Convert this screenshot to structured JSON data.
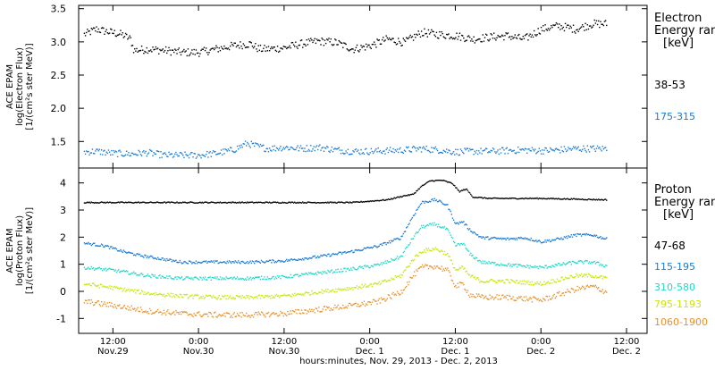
{
  "chart_data": {
    "x_axis": {
      "ticks": [
        {
          "day": 0.5,
          "line1": "12:00",
          "line2": "Nov.29"
        },
        {
          "day": 1.0,
          "line1": "0:00",
          "line2": "Nov.30"
        },
        {
          "day": 1.5,
          "line1": "12:00",
          "line2": "Nov.30"
        },
        {
          "day": 2.0,
          "line1": "0:00",
          "line2": "Dec. 1"
        },
        {
          "day": 2.5,
          "line1": "12:00",
          "line2": "Dec. 1"
        },
        {
          "day": 3.0,
          "line1": "0:00",
          "line2": "Dec. 2"
        },
        {
          "day": 3.5,
          "line1": "12:00",
          "line2": "Dec. 2"
        }
      ],
      "range": [
        0.3,
        3.62
      ],
      "label": "hours:minutes, Nov. 29, 2013 - Dec. 2, 2013"
    },
    "panels": [
      {
        "type": "scatter",
        "ylabel_lines": [
          "ACE EPAM",
          "log(Electron Flux)",
          "[1/(cm²s ster MeV)]"
        ],
        "ylim": [
          1.1,
          3.55
        ],
        "yticks": [
          {
            "v": 1.5,
            "label": "1.5"
          },
          {
            "v": 2.0,
            "label": "2.0"
          },
          {
            "v": 2.5,
            "label": "2.5"
          },
          {
            "v": 3.0,
            "label": "3.0"
          },
          {
            "v": 3.5,
            "label": "3.5"
          }
        ],
        "legend_title": [
          "Electron",
          "Energy ran",
          "[keV]"
        ],
        "series": [
          {
            "name": "38-53",
            "color": "#000000",
            "scatter": 0.06,
            "points": [
              [
                0.33,
                3.12
              ],
              [
                0.4,
                3.2
              ],
              [
                0.45,
                3.17
              ],
              [
                0.55,
                3.12
              ],
              [
                0.6,
                3.05
              ],
              [
                0.62,
                2.88
              ],
              [
                0.7,
                2.9
              ],
              [
                0.8,
                2.88
              ],
              [
                0.9,
                2.85
              ],
              [
                1.0,
                2.85
              ],
              [
                1.1,
                2.9
              ],
              [
                1.2,
                2.95
              ],
              [
                1.3,
                2.98
              ],
              [
                1.35,
                2.9
              ],
              [
                1.4,
                2.9
              ],
              [
                1.5,
                2.92
              ],
              [
                1.6,
                2.98
              ],
              [
                1.7,
                3.02
              ],
              [
                1.8,
                3.0
              ],
              [
                1.9,
                2.9
              ],
              [
                2.0,
                2.95
              ],
              [
                2.1,
                3.05
              ],
              [
                2.2,
                3.0
              ],
              [
                2.3,
                3.15
              ],
              [
                2.4,
                3.12
              ],
              [
                2.5,
                3.1
              ],
              [
                2.6,
                3.05
              ],
              [
                2.7,
                3.08
              ],
              [
                2.8,
                3.1
              ],
              [
                2.9,
                3.05
              ],
              [
                3.0,
                3.2
              ],
              [
                3.1,
                3.25
              ],
              [
                3.2,
                3.2
              ],
              [
                3.3,
                3.28
              ],
              [
                3.38,
                3.28
              ]
            ]
          },
          {
            "name": "175-315",
            "color": "#1a7ad4",
            "scatter": 0.05,
            "points": [
              [
                0.33,
                1.35
              ],
              [
                0.4,
                1.36
              ],
              [
                0.5,
                1.33
              ],
              [
                0.6,
                1.32
              ],
              [
                0.7,
                1.34
              ],
              [
                0.8,
                1.3
              ],
              [
                0.9,
                1.3
              ],
              [
                1.0,
                1.3
              ],
              [
                1.1,
                1.33
              ],
              [
                1.2,
                1.38
              ],
              [
                1.28,
                1.48
              ],
              [
                1.32,
                1.45
              ],
              [
                1.4,
                1.4
              ],
              [
                1.5,
                1.42
              ],
              [
                1.6,
                1.4
              ],
              [
                1.7,
                1.42
              ],
              [
                1.8,
                1.38
              ],
              [
                1.9,
                1.36
              ],
              [
                2.0,
                1.36
              ],
              [
                2.1,
                1.37
              ],
              [
                2.2,
                1.38
              ],
              [
                2.3,
                1.4
              ],
              [
                2.4,
                1.38
              ],
              [
                2.5,
                1.35
              ],
              [
                2.6,
                1.36
              ],
              [
                2.7,
                1.36
              ],
              [
                2.8,
                1.37
              ],
              [
                2.9,
                1.38
              ],
              [
                3.0,
                1.37
              ],
              [
                3.1,
                1.38
              ],
              [
                3.2,
                1.4
              ],
              [
                3.3,
                1.4
              ],
              [
                3.38,
                1.4
              ]
            ]
          }
        ]
      },
      {
        "type": "scatter",
        "ylabel_lines": [
          "ACE EPAM",
          "log(Proton Flux)",
          "[1/(cm²s ster MeV)]"
        ],
        "ylim": [
          -1.55,
          4.55
        ],
        "yticks": [
          {
            "v": -1,
            "label": "-1"
          },
          {
            "v": 0,
            "label": "0"
          },
          {
            "v": 1,
            "label": "1"
          },
          {
            "v": 2,
            "label": "2"
          },
          {
            "v": 3,
            "label": "3"
          },
          {
            "v": 4,
            "label": "4"
          }
        ],
        "legend_title": [
          "Proton",
          "Energy ran",
          "[keV]"
        ],
        "series": [
          {
            "name": "47-68",
            "color": "#000000",
            "scatter": 0.02,
            "points": [
              [
                0.33,
                3.3
              ],
              [
                0.6,
                3.3
              ],
              [
                1.0,
                3.3
              ],
              [
                1.5,
                3.3
              ],
              [
                1.9,
                3.3
              ],
              [
                2.1,
                3.4
              ],
              [
                2.2,
                3.55
              ],
              [
                2.25,
                3.6
              ],
              [
                2.3,
                3.9
              ],
              [
                2.35,
                4.1
              ],
              [
                2.42,
                4.12
              ],
              [
                2.48,
                4.0
              ],
              [
                2.52,
                3.7
              ],
              [
                2.56,
                3.8
              ],
              [
                2.6,
                3.5
              ],
              [
                2.7,
                3.45
              ],
              [
                3.0,
                3.45
              ],
              [
                3.38,
                3.4
              ]
            ]
          },
          {
            "name": "115-195",
            "color": "#1a7ad4",
            "scatter": 0.05,
            "points": [
              [
                0.33,
                1.8
              ],
              [
                0.45,
                1.7
              ],
              [
                0.55,
                1.5
              ],
              [
                0.65,
                1.35
              ],
              [
                0.75,
                1.25
              ],
              [
                0.9,
                1.1
              ],
              [
                1.1,
                1.1
              ],
              [
                1.3,
                1.1
              ],
              [
                1.5,
                1.15
              ],
              [
                1.7,
                1.3
              ],
              [
                1.9,
                1.5
              ],
              [
                2.05,
                1.7
              ],
              [
                2.18,
                2.0
              ],
              [
                2.25,
                2.8
              ],
              [
                2.3,
                3.3
              ],
              [
                2.38,
                3.4
              ],
              [
                2.45,
                3.2
              ],
              [
                2.5,
                2.5
              ],
              [
                2.54,
                2.6
              ],
              [
                2.58,
                2.3
              ],
              [
                2.65,
                2.0
              ],
              [
                2.8,
                1.95
              ],
              [
                2.9,
                2.0
              ],
              [
                3.0,
                1.85
              ],
              [
                3.1,
                1.95
              ],
              [
                3.2,
                2.1
              ],
              [
                3.3,
                2.1
              ],
              [
                3.38,
                1.95
              ]
            ]
          },
          {
            "name": "310-580",
            "color": "#20d8c8",
            "scatter": 0.06,
            "points": [
              [
                0.33,
                0.9
              ],
              [
                0.5,
                0.8
              ],
              [
                0.7,
                0.6
              ],
              [
                0.9,
                0.5
              ],
              [
                1.1,
                0.5
              ],
              [
                1.3,
                0.5
              ],
              [
                1.5,
                0.55
              ],
              [
                1.7,
                0.7
              ],
              [
                1.9,
                0.85
              ],
              [
                2.05,
                1.0
              ],
              [
                2.18,
                1.3
              ],
              [
                2.25,
                2.0
              ],
              [
                2.3,
                2.4
              ],
              [
                2.38,
                2.5
              ],
              [
                2.45,
                2.3
              ],
              [
                2.5,
                1.7
              ],
              [
                2.54,
                1.8
              ],
              [
                2.58,
                1.4
              ],
              [
                2.65,
                1.1
              ],
              [
                2.8,
                1.0
              ],
              [
                3.0,
                0.9
              ],
              [
                3.1,
                1.0
              ],
              [
                3.2,
                1.1
              ],
              [
                3.3,
                1.1
              ],
              [
                3.38,
                0.95
              ]
            ]
          },
          {
            "name": "795-1193",
            "color": "#c8e60c",
            "scatter": 0.07,
            "points": [
              [
                0.33,
                0.3
              ],
              [
                0.5,
                0.15
              ],
              [
                0.7,
                -0.05
              ],
              [
                0.9,
                -0.15
              ],
              [
                1.1,
                -0.2
              ],
              [
                1.3,
                -0.2
              ],
              [
                1.5,
                -0.15
              ],
              [
                1.7,
                0.0
              ],
              [
                1.9,
                0.15
              ],
              [
                2.05,
                0.3
              ],
              [
                2.18,
                0.6
              ],
              [
                2.25,
                1.2
              ],
              [
                2.3,
                1.5
              ],
              [
                2.38,
                1.6
              ],
              [
                2.45,
                1.4
              ],
              [
                2.5,
                0.8
              ],
              [
                2.54,
                0.9
              ],
              [
                2.58,
                0.6
              ],
              [
                2.65,
                0.4
              ],
              [
                2.8,
                0.4
              ],
              [
                3.0,
                0.3
              ],
              [
                3.1,
                0.45
              ],
              [
                3.2,
                0.6
              ],
              [
                3.3,
                0.6
              ],
              [
                3.38,
                0.5
              ]
            ]
          },
          {
            "name": "1060-1900",
            "color": "#e8902a",
            "scatter": 0.1,
            "points": [
              [
                0.33,
                -0.35
              ],
              [
                0.5,
                -0.5
              ],
              [
                0.7,
                -0.7
              ],
              [
                0.9,
                -0.8
              ],
              [
                1.1,
                -0.85
              ],
              [
                1.3,
                -0.85
              ],
              [
                1.5,
                -0.8
              ],
              [
                1.7,
                -0.65
              ],
              [
                1.9,
                -0.5
              ],
              [
                2.05,
                -0.35
              ],
              [
                2.18,
                0.0
              ],
              [
                2.25,
                0.6
              ],
              [
                2.3,
                0.9
              ],
              [
                2.38,
                0.95
              ],
              [
                2.45,
                0.8
              ],
              [
                2.5,
                0.2
              ],
              [
                2.54,
                0.3
              ],
              [
                2.58,
                -0.1
              ],
              [
                2.65,
                -0.2
              ],
              [
                2.8,
                -0.2
              ],
              [
                3.0,
                -0.3
              ],
              [
                3.1,
                -0.1
              ],
              [
                3.2,
                0.1
              ],
              [
                3.3,
                0.2
              ],
              [
                3.38,
                0.0
              ]
            ]
          }
        ]
      }
    ]
  }
}
